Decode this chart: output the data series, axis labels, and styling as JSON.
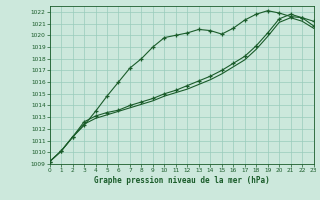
{
  "xlabel": "Graphe pression niveau de la mer (hPa)",
  "bg_color": "#cce8dc",
  "grid_color": "#99ccbb",
  "line_color": "#1a5c2a",
  "ylim": [
    1009,
    1022.5
  ],
  "xlim": [
    0,
    23
  ],
  "yticks": [
    1009,
    1010,
    1011,
    1012,
    1013,
    1014,
    1015,
    1016,
    1017,
    1018,
    1019,
    1020,
    1021,
    1022
  ],
  "xticks": [
    0,
    1,
    2,
    3,
    4,
    5,
    6,
    7,
    8,
    9,
    10,
    11,
    12,
    13,
    14,
    15,
    16,
    17,
    18,
    19,
    20,
    21,
    22,
    23
  ],
  "series1_x": [
    0,
    1,
    2,
    3,
    4,
    5,
    6,
    7,
    8,
    9,
    10,
    11,
    12,
    13,
    14,
    15,
    16,
    17,
    18,
    19,
    20,
    21,
    22,
    23
  ],
  "series1_y": [
    1009.2,
    1010.1,
    1011.3,
    1012.3,
    1013.5,
    1014.8,
    1016.0,
    1017.2,
    1018.0,
    1019.0,
    1019.8,
    1020.0,
    1020.2,
    1020.5,
    1020.4,
    1020.1,
    1020.6,
    1021.3,
    1021.8,
    1022.1,
    1021.9,
    1021.6,
    1021.5,
    1021.2
  ],
  "series2_x": [
    0,
    1,
    2,
    3,
    4,
    5,
    6,
    7,
    8,
    9,
    10,
    11,
    12,
    13,
    14,
    15,
    16,
    17,
    18,
    19,
    20,
    21,
    22,
    23
  ],
  "series2_y": [
    1009.2,
    1010.1,
    1011.3,
    1012.6,
    1013.1,
    1013.4,
    1013.6,
    1014.0,
    1014.3,
    1014.6,
    1015.0,
    1015.3,
    1015.7,
    1016.1,
    1016.5,
    1017.0,
    1017.6,
    1018.2,
    1019.1,
    1020.2,
    1021.4,
    1021.8,
    1021.5,
    1020.8
  ],
  "series3_x": [
    0,
    1,
    2,
    3,
    4,
    5,
    6,
    7,
    8,
    9,
    10,
    11,
    12,
    13,
    14,
    15,
    16,
    17,
    18,
    19,
    20,
    21,
    22,
    23
  ],
  "series3_y": [
    1009.2,
    1010.1,
    1011.3,
    1012.4,
    1012.9,
    1013.2,
    1013.5,
    1013.8,
    1014.1,
    1014.4,
    1014.8,
    1015.1,
    1015.4,
    1015.8,
    1016.2,
    1016.7,
    1017.3,
    1017.9,
    1018.8,
    1019.9,
    1021.1,
    1021.5,
    1021.2,
    1020.6
  ]
}
